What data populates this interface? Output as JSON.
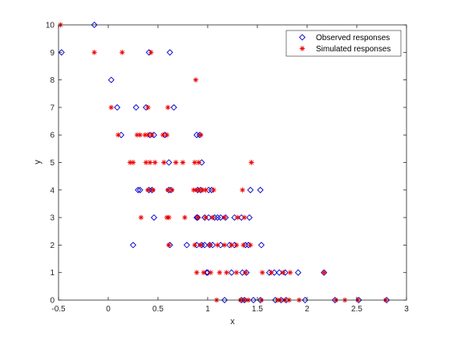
{
  "chart_data": {
    "type": "scatter",
    "xlabel": "x",
    "ylabel": "y",
    "xlim": [
      -0.5,
      3
    ],
    "ylim": [
      0,
      10
    ],
    "xticks": [
      -0.5,
      0,
      0.5,
      1,
      1.5,
      2,
      2.5,
      3
    ],
    "yticks": [
      0,
      1,
      2,
      3,
      4,
      5,
      6,
      7,
      8,
      9,
      10
    ],
    "xtick_labels": [
      "-0.5",
      "0",
      "0.5",
      "1",
      "1.5",
      "2",
      "2.5",
      "3"
    ],
    "ytick_labels": [
      "0",
      "1",
      "2",
      "3",
      "4",
      "5",
      "6",
      "7",
      "8",
      "9",
      "10"
    ],
    "grid": false,
    "legend_position": "top-right",
    "series": [
      {
        "name": "Observed responses",
        "marker": "diamond",
        "color": "#0000cc",
        "points": [
          [
            -0.14,
            10
          ],
          [
            -0.47,
            9
          ],
          [
            0.41,
            9
          ],
          [
            0.62,
            9
          ],
          [
            0.03,
            8
          ],
          [
            0.09,
            7
          ],
          [
            0.28,
            7
          ],
          [
            0.38,
            7
          ],
          [
            0.66,
            7
          ],
          [
            0.13,
            6
          ],
          [
            0.42,
            6
          ],
          [
            0.46,
            6
          ],
          [
            0.57,
            6
          ],
          [
            0.89,
            6
          ],
          [
            0.92,
            6
          ],
          [
            0.61,
            5
          ],
          [
            0.94,
            5
          ],
          [
            0.3,
            4
          ],
          [
            0.32,
            4
          ],
          [
            0.41,
            4
          ],
          [
            0.44,
            4
          ],
          [
            0.61,
            4
          ],
          [
            0.63,
            4
          ],
          [
            0.9,
            4
          ],
          [
            0.93,
            4
          ],
          [
            1.01,
            4
          ],
          [
            1.04,
            4
          ],
          [
            1.43,
            4
          ],
          [
            1.53,
            4
          ],
          [
            0.46,
            3
          ],
          [
            0.89,
            3
          ],
          [
            0.9,
            3
          ],
          [
            0.97,
            3
          ],
          [
            1.01,
            3
          ],
          [
            1.07,
            3
          ],
          [
            1.1,
            3
          ],
          [
            1.13,
            3
          ],
          [
            1.18,
            3
          ],
          [
            1.27,
            3
          ],
          [
            1.34,
            3
          ],
          [
            1.42,
            3
          ],
          [
            0.25,
            2
          ],
          [
            0.62,
            2
          ],
          [
            0.79,
            2
          ],
          [
            0.89,
            2
          ],
          [
            0.94,
            2
          ],
          [
            0.97,
            2
          ],
          [
            1.02,
            2
          ],
          [
            1.05,
            2
          ],
          [
            1.13,
            2
          ],
          [
            1.22,
            2
          ],
          [
            1.27,
            2
          ],
          [
            1.38,
            2
          ],
          [
            1.41,
            2
          ],
          [
            1.54,
            2
          ],
          [
            0.99,
            1
          ],
          [
            1.0,
            1
          ],
          [
            1.24,
            1
          ],
          [
            1.35,
            1
          ],
          [
            1.39,
            1
          ],
          [
            1.62,
            1
          ],
          [
            1.67,
            1
          ],
          [
            1.72,
            1
          ],
          [
            1.78,
            1
          ],
          [
            1.91,
            1
          ],
          [
            2.17,
            1
          ],
          [
            1.17,
            0
          ],
          [
            1.34,
            0
          ],
          [
            1.37,
            0
          ],
          [
            1.46,
            0
          ],
          [
            1.53,
            0
          ],
          [
            1.68,
            0
          ],
          [
            1.74,
            0
          ],
          [
            1.79,
            0
          ],
          [
            1.98,
            0
          ],
          [
            2.28,
            0
          ],
          [
            2.52,
            0
          ],
          [
            2.8,
            0
          ]
        ]
      },
      {
        "name": "Simulated responses",
        "marker": "asterisk",
        "color": "#ee0000",
        "points": [
          [
            -0.48,
            10
          ],
          [
            -0.14,
            9
          ],
          [
            0.14,
            9
          ],
          [
            0.43,
            9
          ],
          [
            0.88,
            8
          ],
          [
            0.03,
            7
          ],
          [
            0.4,
            7
          ],
          [
            0.6,
            7
          ],
          [
            0.1,
            6
          ],
          [
            0.29,
            6
          ],
          [
            0.32,
            6
          ],
          [
            0.37,
            6
          ],
          [
            0.4,
            6
          ],
          [
            0.44,
            6
          ],
          [
            0.55,
            6
          ],
          [
            0.59,
            6
          ],
          [
            0.93,
            6
          ],
          [
            0.22,
            5
          ],
          [
            0.25,
            5
          ],
          [
            0.38,
            5
          ],
          [
            0.42,
            5
          ],
          [
            0.47,
            5
          ],
          [
            0.56,
            5
          ],
          [
            0.68,
            5
          ],
          [
            0.75,
            5
          ],
          [
            0.87,
            5
          ],
          [
            0.91,
            5
          ],
          [
            1.44,
            5
          ],
          [
            0.4,
            4
          ],
          [
            0.45,
            4
          ],
          [
            0.6,
            4
          ],
          [
            0.64,
            4
          ],
          [
            0.86,
            4
          ],
          [
            0.89,
            4
          ],
          [
            0.92,
            4
          ],
          [
            0.95,
            4
          ],
          [
            0.98,
            4
          ],
          [
            1.06,
            4
          ],
          [
            1.35,
            4
          ],
          [
            0.33,
            3
          ],
          [
            0.59,
            3
          ],
          [
            0.61,
            3
          ],
          [
            0.77,
            3
          ],
          [
            0.9,
            3
          ],
          [
            0.98,
            3
          ],
          [
            1.05,
            3
          ],
          [
            1.17,
            3
          ],
          [
            1.3,
            3
          ],
          [
            1.37,
            3
          ],
          [
            0.61,
            2
          ],
          [
            0.87,
            2
          ],
          [
            0.93,
            2
          ],
          [
            1.02,
            2
          ],
          [
            1.1,
            2
          ],
          [
            1.17,
            2
          ],
          [
            1.24,
            2
          ],
          [
            1.29,
            2
          ],
          [
            1.36,
            2
          ],
          [
            1.43,
            2
          ],
          [
            0.89,
            1
          ],
          [
            0.96,
            1
          ],
          [
            1.03,
            1
          ],
          [
            1.12,
            1
          ],
          [
            1.19,
            1
          ],
          [
            1.29,
            1
          ],
          [
            1.38,
            1
          ],
          [
            1.55,
            1
          ],
          [
            1.64,
            1
          ],
          [
            1.76,
            1
          ],
          [
            1.83,
            1
          ],
          [
            2.17,
            1
          ],
          [
            1.09,
            0
          ],
          [
            1.33,
            0
          ],
          [
            1.37,
            0
          ],
          [
            1.41,
            0
          ],
          [
            1.54,
            0
          ],
          [
            1.7,
            0
          ],
          [
            1.73,
            0
          ],
          [
            1.78,
            0
          ],
          [
            1.82,
            0
          ],
          [
            1.92,
            0
          ],
          [
            2.29,
            0
          ],
          [
            2.38,
            0
          ],
          [
            2.51,
            0
          ],
          [
            2.79,
            0
          ]
        ]
      }
    ]
  }
}
